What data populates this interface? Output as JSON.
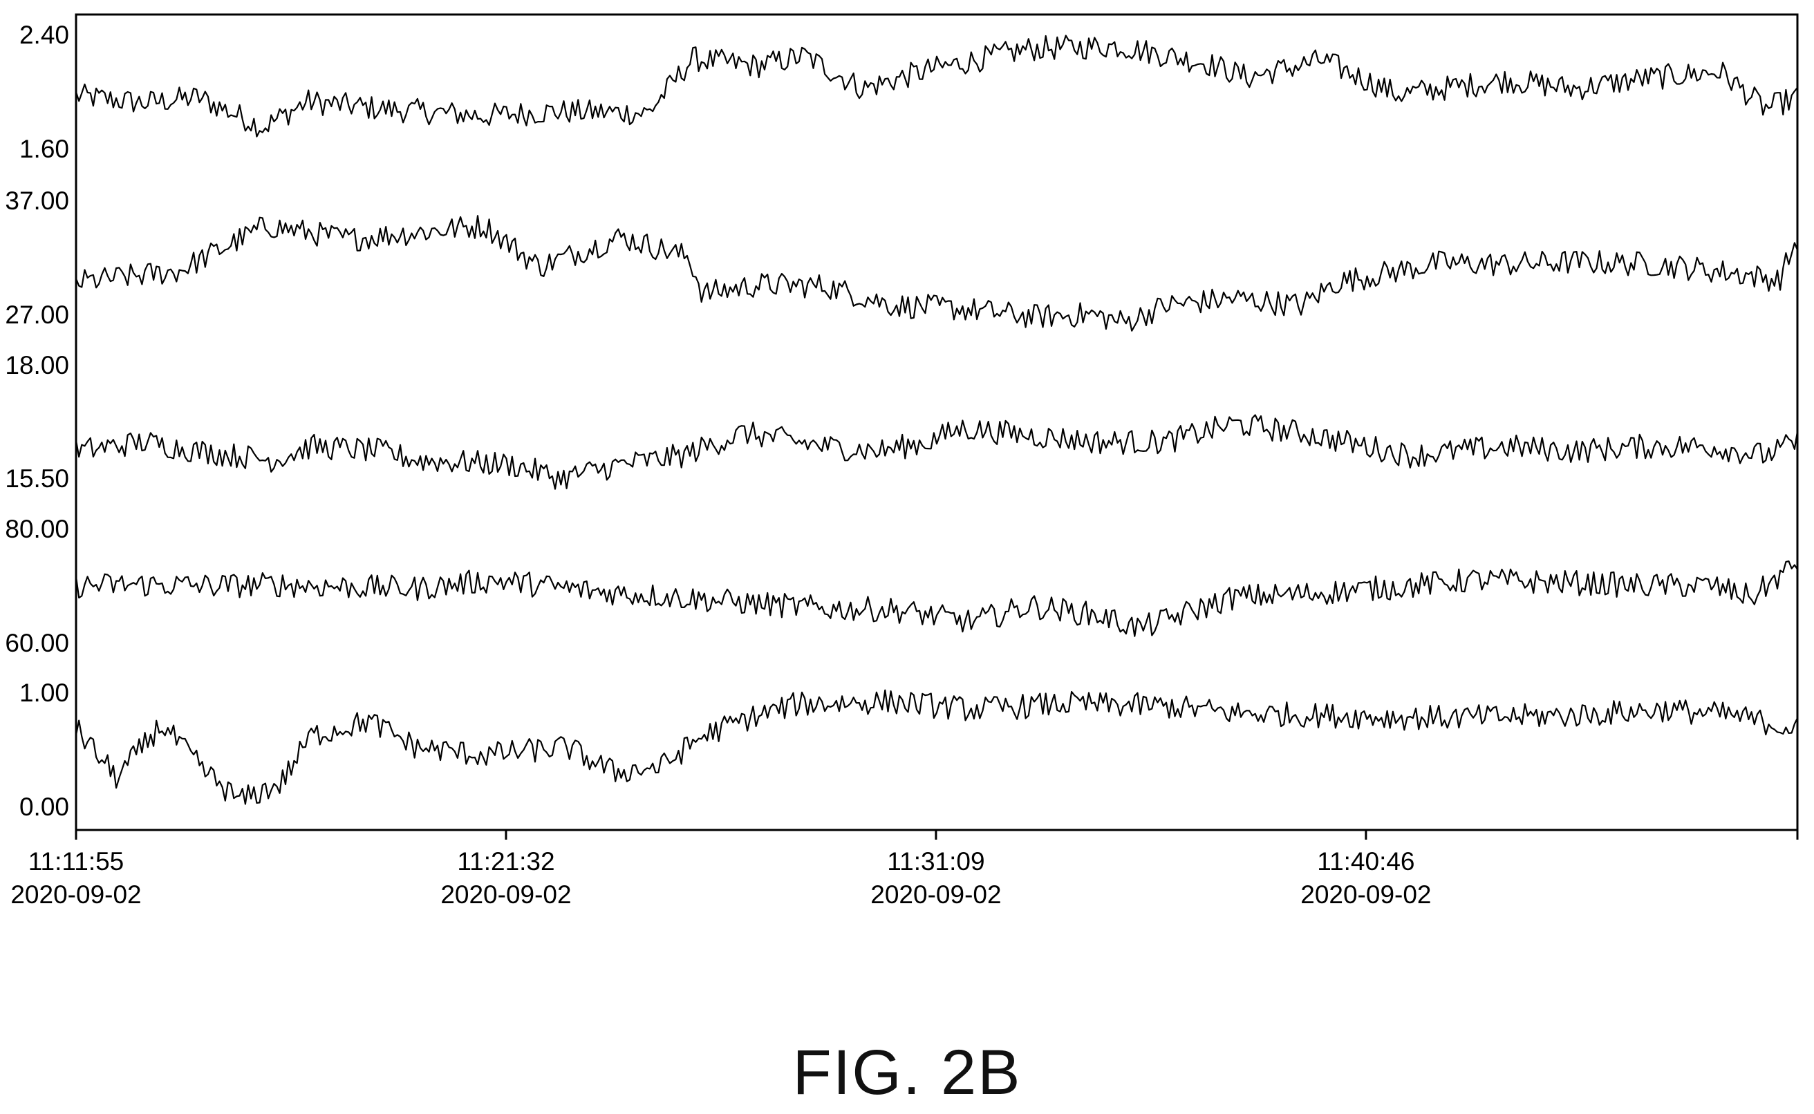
{
  "figure_label": "FIG. 2B",
  "colors": {
    "line": "#000000",
    "frame": "#000000",
    "background": "#ffffff"
  },
  "chart_data": [
    {
      "type": "line",
      "ylim": [
        1.6,
        2.4
      ],
      "y_tick_labels": [
        "2.40",
        "1.60"
      ],
      "anchors": [
        [
          0,
          1.97
        ],
        [
          100,
          1.92
        ],
        [
          180,
          1.96
        ],
        [
          275,
          1.75
        ],
        [
          340,
          1.93
        ],
        [
          445,
          1.88
        ],
        [
          600,
          1.83
        ],
        [
          700,
          1.86
        ],
        [
          840,
          1.85
        ],
        [
          905,
          2.23
        ],
        [
          1000,
          2.18
        ],
        [
          1070,
          2.25
        ],
        [
          1155,
          2.02
        ],
        [
          1250,
          2.15
        ],
        [
          1400,
          2.3
        ],
        [
          1530,
          2.32
        ],
        [
          1660,
          2.2
        ],
        [
          1720,
          2.1
        ],
        [
          1830,
          2.22
        ],
        [
          1940,
          1.98
        ],
        [
          2100,
          2.08
        ],
        [
          2200,
          2.02
        ],
        [
          2300,
          2.09
        ],
        [
          2414,
          2.14
        ],
        [
          2480,
          1.88
        ],
        [
          2527,
          1.96
        ]
      ]
    },
    {
      "type": "line",
      "ylim": [
        27,
        37
      ],
      "y_tick_labels": [
        "37.00",
        "27.00"
      ],
      "anchors": [
        [
          0,
          29.8
        ],
        [
          150,
          30.8
        ],
        [
          280,
          34.8
        ],
        [
          400,
          33.6
        ],
        [
          500,
          34.2
        ],
        [
          600,
          34.8
        ],
        [
          680,
          31.2
        ],
        [
          800,
          33.8
        ],
        [
          900,
          32.0
        ],
        [
          920,
          28.8
        ],
        [
          1000,
          29.6
        ],
        [
          1100,
          29.5
        ],
        [
          1200,
          27.8
        ],
        [
          1300,
          27.5
        ],
        [
          1405,
          26.8
        ],
        [
          1490,
          27.0
        ],
        [
          1540,
          26.3
        ],
        [
          1600,
          27.8
        ],
        [
          1700,
          28.4
        ],
        [
          1800,
          27.8
        ],
        [
          1850,
          29.8
        ],
        [
          2000,
          31.5
        ],
        [
          2100,
          31.4
        ],
        [
          2200,
          31.6
        ],
        [
          2320,
          31.4
        ],
        [
          2440,
          30.6
        ],
        [
          2500,
          30.0
        ],
        [
          2527,
          33.6
        ]
      ]
    },
    {
      "type": "line",
      "ylim": [
        15.5,
        18
      ],
      "y_tick_labels": [
        "18.00",
        "15.50"
      ],
      "anchors": [
        [
          0,
          16.1
        ],
        [
          100,
          16.3
        ],
        [
          180,
          16.1
        ],
        [
          290,
          15.9
        ],
        [
          345,
          16.2
        ],
        [
          445,
          16.1
        ],
        [
          500,
          15.9
        ],
        [
          640,
          15.8
        ],
        [
          712,
          15.5
        ],
        [
          800,
          15.8
        ],
        [
          890,
          16.0
        ],
        [
          980,
          16.5
        ],
        [
          1100,
          16.2
        ],
        [
          1180,
          16.1
        ],
        [
          1250,
          16.3
        ],
        [
          1300,
          16.6
        ],
        [
          1500,
          16.3
        ],
        [
          1600,
          16.3
        ],
        [
          1700,
          16.7
        ],
        [
          1800,
          16.5
        ],
        [
          1960,
          16.0
        ],
        [
          2100,
          16.2
        ],
        [
          2200,
          16.1
        ],
        [
          2300,
          16.2
        ],
        [
          2400,
          16.2
        ],
        [
          2480,
          16.0
        ],
        [
          2527,
          16.3
        ]
      ]
    },
    {
      "type": "line",
      "ylim": [
        60,
        80
      ],
      "y_tick_labels": [
        "80.00",
        "60.00"
      ],
      "anchors": [
        [
          0,
          70.0
        ],
        [
          100,
          70.2
        ],
        [
          200,
          70.0
        ],
        [
          300,
          70.2
        ],
        [
          400,
          69.8
        ],
        [
          500,
          69.5
        ],
        [
          615,
          71.0
        ],
        [
          760,
          69.0
        ],
        [
          860,
          68.2
        ],
        [
          980,
          67.0
        ],
        [
          1100,
          66.0
        ],
        [
          1200,
          65.8
        ],
        [
          1316,
          63.6
        ],
        [
          1400,
          66.5
        ],
        [
          1500,
          64.8
        ],
        [
          1563,
          62.5
        ],
        [
          1650,
          66.0
        ],
        [
          1700,
          68.0
        ],
        [
          1800,
          68.5
        ],
        [
          1960,
          70.0
        ],
        [
          2050,
          71.0
        ],
        [
          2200,
          70.5
        ],
        [
          2300,
          70.0
        ],
        [
          2400,
          70.0
        ],
        [
          2460,
          68.0
        ],
        [
          2527,
          74.0
        ]
      ]
    },
    {
      "type": "line",
      "ylim": [
        0,
        1
      ],
      "y_tick_labels": [
        "1.00",
        "0.00"
      ],
      "anchors": [
        [
          0,
          0.68
        ],
        [
          60,
          0.25
        ],
        [
          125,
          0.72
        ],
        [
          190,
          0.3
        ],
        [
          240,
          0.05
        ],
        [
          300,
          0.2
        ],
        [
          345,
          0.62
        ],
        [
          430,
          0.75
        ],
        [
          500,
          0.52
        ],
        [
          600,
          0.45
        ],
        [
          720,
          0.52
        ],
        [
          790,
          0.3
        ],
        [
          860,
          0.35
        ],
        [
          920,
          0.62
        ],
        [
          990,
          0.78
        ],
        [
          1060,
          0.9
        ],
        [
          1200,
          0.92
        ],
        [
          1318,
          0.85
        ],
        [
          1450,
          0.9
        ],
        [
          1600,
          0.88
        ],
        [
          1700,
          0.82
        ],
        [
          1830,
          0.8
        ],
        [
          1950,
          0.78
        ],
        [
          2050,
          0.78
        ],
        [
          2200,
          0.8
        ],
        [
          2330,
          0.85
        ],
        [
          2430,
          0.8
        ],
        [
          2527,
          0.68
        ]
      ]
    }
  ],
  "x_axis": {
    "ticks": [
      {
        "x": 0,
        "time": "11:11:55",
        "date": "2020-09-02"
      },
      {
        "x": 577,
        "time": "11:21:32",
        "date": "2020-09-02"
      },
      {
        "x": 1154,
        "time": "11:31:09",
        "date": "2020-09-02"
      },
      {
        "x": 1731,
        "time": "11:40:46",
        "date": "2020-09-02"
      }
    ],
    "end": 2310
  }
}
